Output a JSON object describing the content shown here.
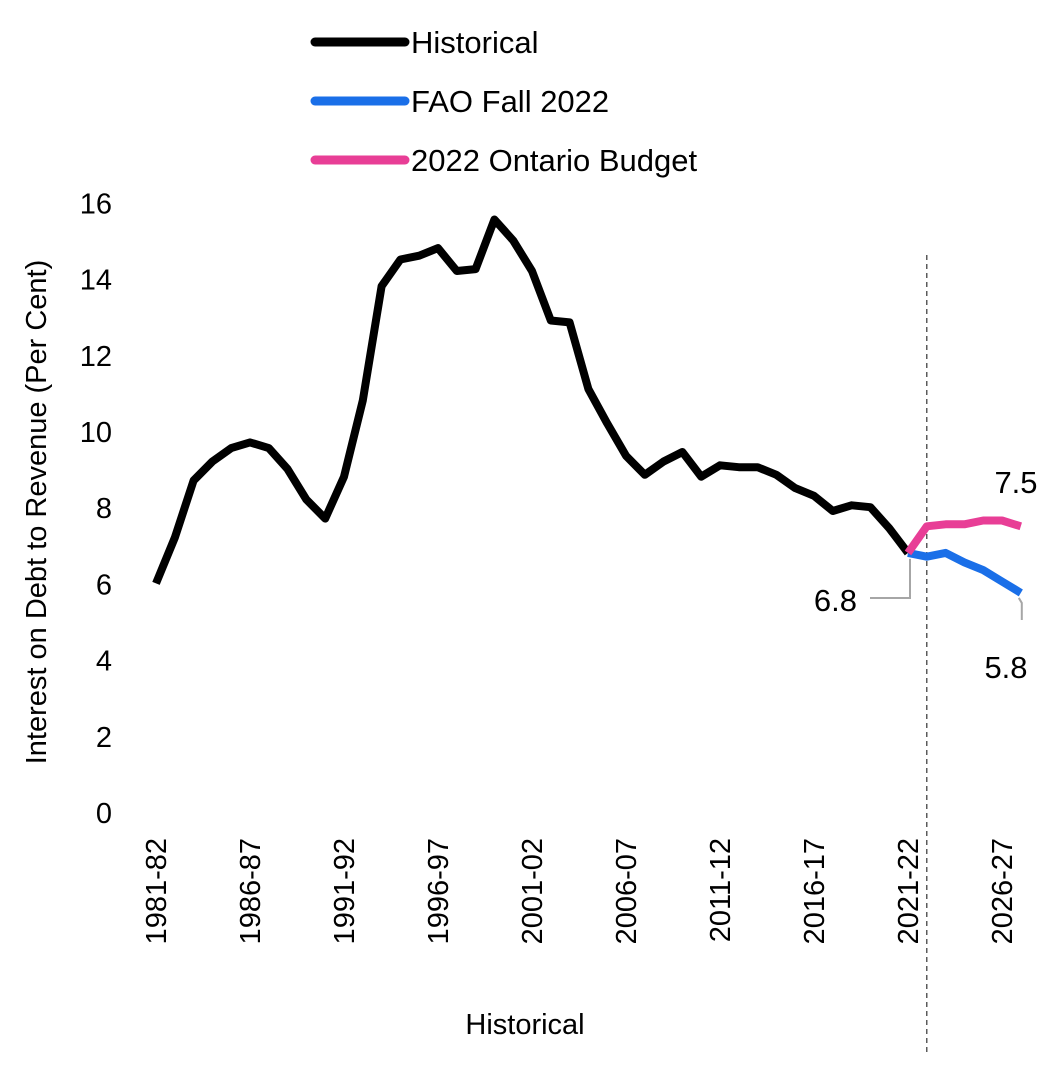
{
  "chart_data": {
    "type": "line",
    "ylabel": "Interest on Debt to Revenue (Per Cent)",
    "xlabel": "Historical",
    "ylim": [
      0,
      16
    ],
    "yticks": [
      0,
      2,
      4,
      6,
      8,
      10,
      12,
      14,
      16
    ],
    "grid": false,
    "legend_position": "top",
    "x_tick_labels": [
      "1981-82",
      "1986-87",
      "1991-92",
      "1996-97",
      "2001-02",
      "2006-07",
      "2011-12",
      "2016-17",
      "2021-22",
      "2026-27"
    ],
    "categories": [
      "1981-82",
      "1982-83",
      "1983-84",
      "1984-85",
      "1985-86",
      "1986-87",
      "1987-88",
      "1988-89",
      "1989-90",
      "1990-91",
      "1991-92",
      "1992-93",
      "1993-94",
      "1994-95",
      "1995-96",
      "1996-97",
      "1997-98",
      "1998-99",
      "1999-00",
      "2000-01",
      "2001-02",
      "2002-03",
      "2003-04",
      "2004-05",
      "2005-06",
      "2006-07",
      "2007-08",
      "2008-09",
      "2009-10",
      "2010-11",
      "2011-12",
      "2012-13",
      "2013-14",
      "2014-15",
      "2015-16",
      "2016-17",
      "2017-18",
      "2018-19",
      "2019-20",
      "2020-21",
      "2021-22",
      "2022-23",
      "2023-24",
      "2024-25",
      "2025-26",
      "2026-27",
      "2027-28"
    ],
    "series": [
      {
        "name": "Historical",
        "color": "#000000",
        "x": [
          "1981-82",
          "1982-83",
          "1983-84",
          "1984-85",
          "1985-86",
          "1986-87",
          "1987-88",
          "1988-89",
          "1989-90",
          "1990-91",
          "1991-92",
          "1992-93",
          "1993-94",
          "1994-95",
          "1995-96",
          "1996-97",
          "1997-98",
          "1998-99",
          "1999-00",
          "2000-01",
          "2001-02",
          "2002-03",
          "2003-04",
          "2004-05",
          "2005-06",
          "2006-07",
          "2007-08",
          "2008-09",
          "2009-10",
          "2010-11",
          "2011-12",
          "2012-13",
          "2013-14",
          "2014-15",
          "2015-16",
          "2016-17",
          "2017-18",
          "2018-19",
          "2019-20",
          "2020-21",
          "2021-22"
        ],
        "values": [
          6.0,
          7.2,
          8.7,
          9.2,
          9.55,
          9.7,
          9.55,
          9.0,
          8.2,
          7.7,
          8.8,
          10.8,
          13.8,
          14.5,
          14.6,
          14.8,
          14.2,
          14.25,
          15.55,
          15.0,
          14.2,
          12.9,
          12.85,
          11.1,
          10.2,
          9.35,
          8.85,
          9.2,
          9.45,
          8.8,
          9.1,
          9.05,
          9.05,
          8.85,
          8.5,
          8.3,
          7.9,
          8.05,
          8.0,
          7.45,
          6.8
        ]
      },
      {
        "name": "FAO Fall 2022",
        "color": "#1a6fe8",
        "x": [
          "2021-22",
          "2022-23",
          "2023-24",
          "2024-25",
          "2025-26",
          "2026-27",
          "2027-28"
        ],
        "values": [
          6.8,
          6.7,
          6.8,
          6.55,
          6.35,
          6.05,
          5.75
        ]
      },
      {
        "name": "2022 Ontario Budget",
        "color": "#e83e96",
        "x": [
          "2021-22",
          "2022-23",
          "2023-24",
          "2024-25",
          "2025-26",
          "2026-27",
          "2027-28"
        ],
        "values": [
          6.8,
          7.5,
          7.55,
          7.55,
          7.65,
          7.65,
          7.5
        ]
      }
    ],
    "annotations": [
      {
        "text": "6.8",
        "series": "Historical",
        "x": "2021-22"
      },
      {
        "text": "7.5",
        "series": "2022 Ontario Budget",
        "x": "2027-28"
      },
      {
        "text": "5.8",
        "series": "FAO Fall 2022",
        "x": "2027-28"
      }
    ],
    "divider_after": "2021-22"
  }
}
